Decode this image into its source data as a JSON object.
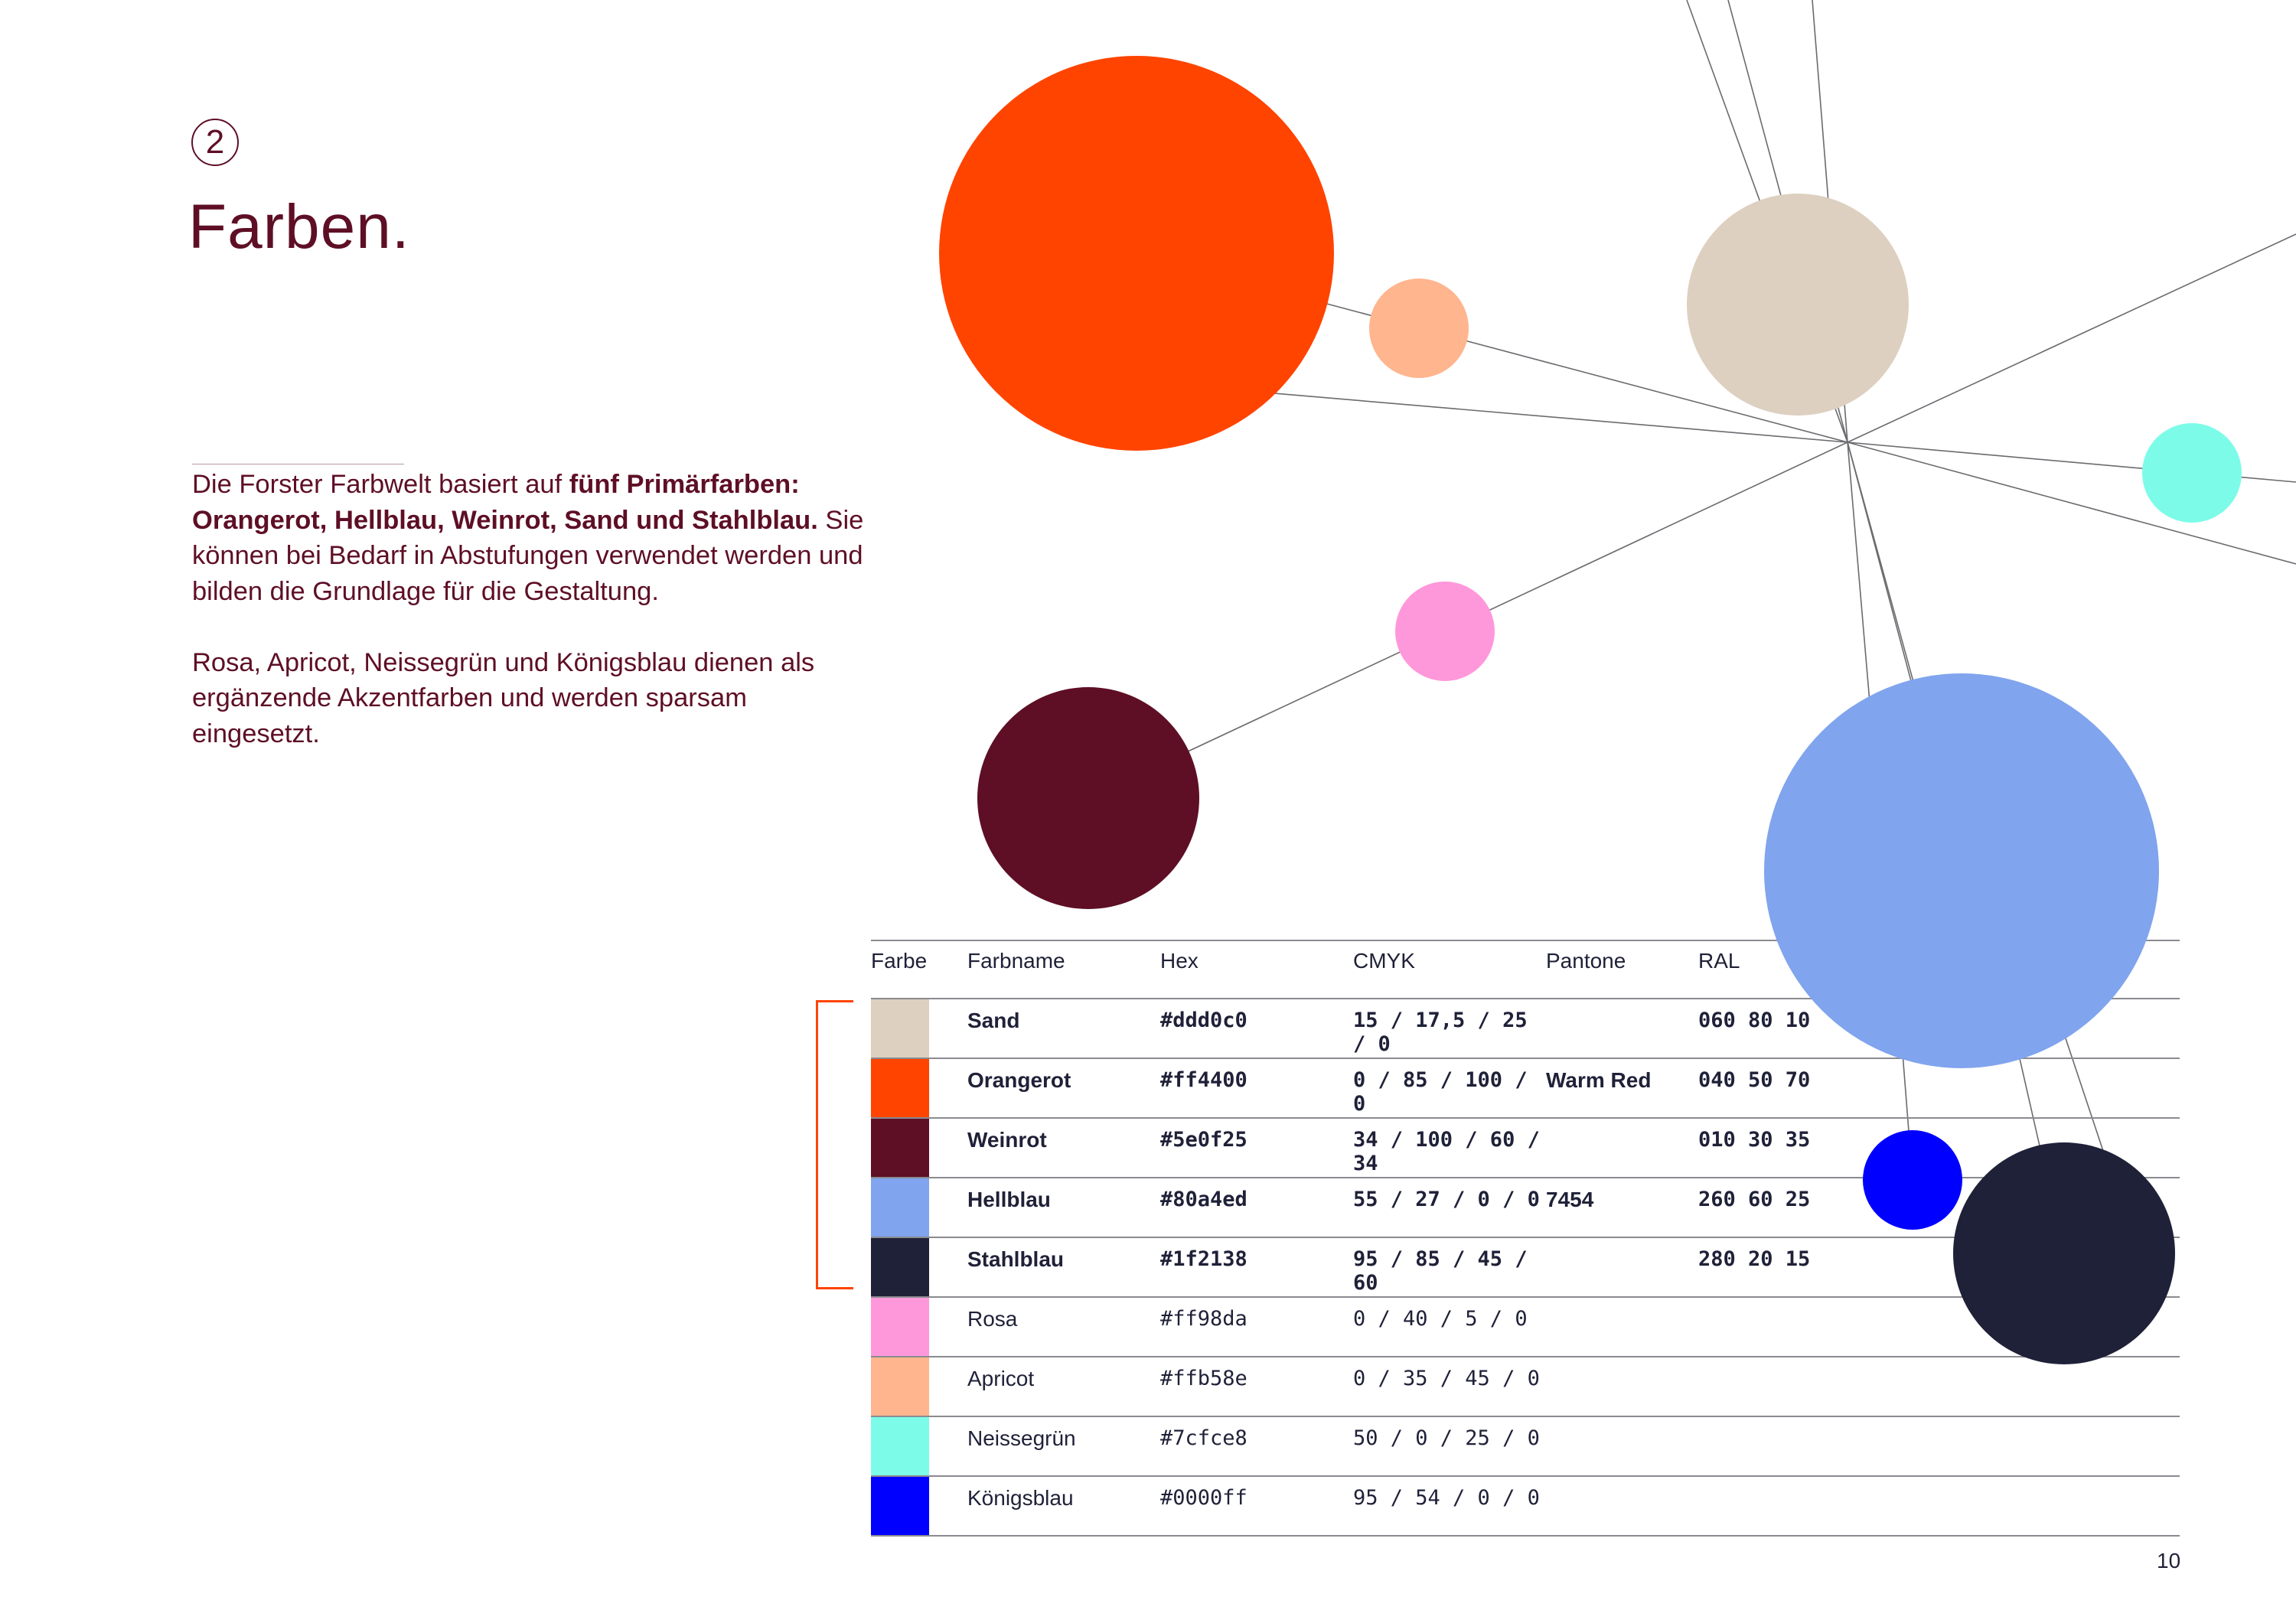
{
  "section_number": "2",
  "title": "Farben.",
  "intro": {
    "p1_start": "Die Forster Farbwelt basiert auf ",
    "p1_bold": "fünf Primärfarben: Orangerot, Hellblau, Weinrot, Sand und Stahlblau.",
    "p1_end": " Sie können bei Bedarf in Abstufungen verwendet werden und bilden die Grundlage für die Gestaltung.",
    "p2": "Rosa, Apricot, Neissegrün und Königsblau dienen als ergänzende Akzentfarben und werden sparsam eingesetzt."
  },
  "table": {
    "headers": [
      "Farbe",
      "Farbname",
      "Hex",
      "CMYK",
      "Pantone",
      "RAL"
    ],
    "rows": [
      {
        "name": "Sand",
        "hex": "#ddd0c0",
        "cmyk": "15 / 17,5 / 25 / 0",
        "pantone": "",
        "ral": "060 80 10",
        "primary": true
      },
      {
        "name": "Orangerot",
        "hex": "#ff4400",
        "cmyk": "0 / 85 / 100 / 0",
        "pantone": "Warm Red",
        "ral": "040 50 70",
        "primary": true
      },
      {
        "name": "Weinrot",
        "hex": "#5e0f25",
        "cmyk": "34 / 100 / 60 / 34",
        "pantone": "",
        "ral": "010 30 35",
        "primary": true
      },
      {
        "name": "Hellblau",
        "hex": "#80a4ed",
        "cmyk": "55 / 27 / 0 / 0",
        "pantone": "7454",
        "ral": "260 60 25",
        "primary": true
      },
      {
        "name": "Stahlblau",
        "hex": "#1f2138",
        "cmyk": "95 / 85 / 45 / 60",
        "pantone": "",
        "ral": "280 20 15",
        "primary": true
      },
      {
        "name": "Rosa",
        "hex": "#ff98da",
        "cmyk": "0 / 40 / 5 / 0",
        "pantone": "",
        "ral": "",
        "primary": false
      },
      {
        "name": "Apricot",
        "hex": "#ffb58e",
        "cmyk": "0 / 35 / 45 / 0",
        "pantone": "",
        "ral": "",
        "primary": false
      },
      {
        "name": "Neissegrün",
        "hex": "#7cfce8",
        "cmyk": "50 / 0 / 25 / 0",
        "pantone": "",
        "ral": "",
        "primary": false
      },
      {
        "name": "Königsblau",
        "hex": "#0000ff",
        "cmyk": "95 / 54 / 0 / 0",
        "pantone": "",
        "ral": "",
        "primary": false
      }
    ]
  },
  "page_number": "10",
  "colors": {
    "text": "#5e0f25",
    "bracket": "#ff4400",
    "line": "#6b6b70"
  }
}
